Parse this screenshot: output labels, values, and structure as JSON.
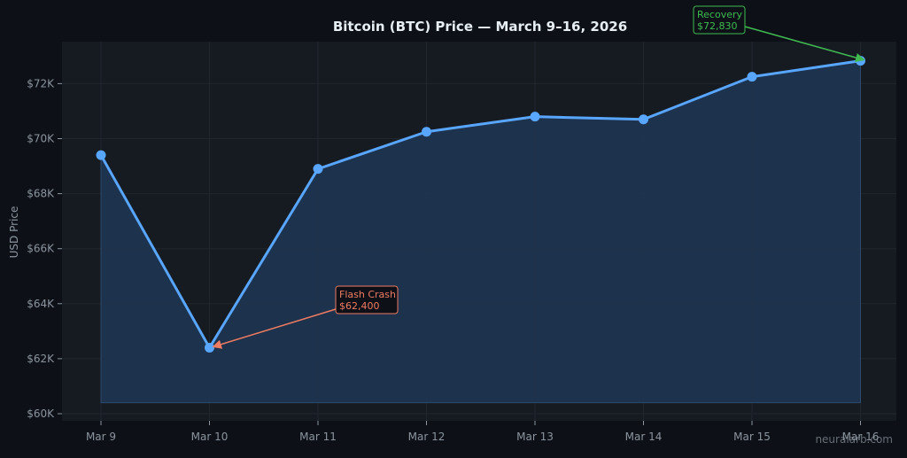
{
  "chart_data": {
    "type": "line",
    "title": "Bitcoin (BTC) Price — March 9–16, 2026",
    "xlabel": "",
    "ylabel": "USD Price",
    "categories": [
      "Mar 9",
      "Mar 10",
      "Mar 11",
      "Mar 12",
      "Mar 13",
      "Mar 14",
      "Mar 15",
      "Mar 16"
    ],
    "series": [
      {
        "values": [
          69400,
          62400,
          68900,
          70250,
          70800,
          70700,
          72250,
          72830
        ]
      }
    ],
    "ylim": [
      60000,
      73700
    ],
    "yticks": [
      60000,
      62000,
      64000,
      66000,
      68000,
      70000,
      72000
    ],
    "ytick_labels": [
      "$60K",
      "$62K",
      "$64K",
      "$66K",
      "$68K",
      "$70K",
      "$72K"
    ],
    "area_baseline": 60400,
    "grid": true,
    "annotations": [
      {
        "name": "flash-crash",
        "lines": [
          "Flash Crash",
          "$62,400"
        ],
        "target_index": 1,
        "color": "#ee7b63"
      },
      {
        "name": "recovery",
        "lines": [
          "Recovery",
          "$72,830"
        ],
        "target_index": 7,
        "color": "#3fb950"
      }
    ],
    "watermark": "neuralarb.com",
    "colors": {
      "background": "#0d1117",
      "plot_background": "#161b22",
      "line": "#58a6ff",
      "fill": "#1f3654",
      "grid": "#21262d",
      "text": "#8b949e",
      "title": "#e6edf3"
    }
  }
}
